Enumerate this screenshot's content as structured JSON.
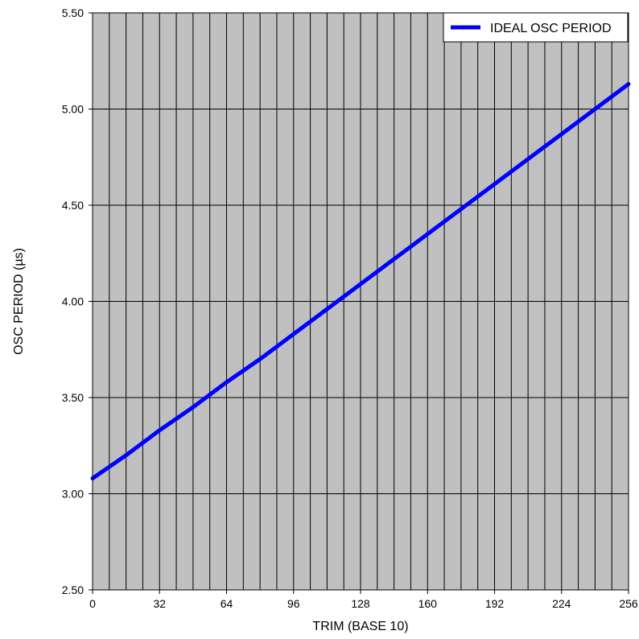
{
  "chart_data": {
    "type": "line",
    "title": "",
    "xlabel": "TRIM (BASE 10)",
    "ylabel": "OSC PERIOD (µs)",
    "xlim": [
      0,
      256
    ],
    "ylim": [
      2.5,
      5.5
    ],
    "x_ticks": [
      0,
      32,
      64,
      96,
      128,
      160,
      192,
      224,
      256
    ],
    "x_tick_labels": [
      "0",
      "32",
      "64",
      "96",
      "128",
      "160",
      "192",
      "224",
      "256"
    ],
    "x_minor_step": 8,
    "y_ticks": [
      2.5,
      3.0,
      3.5,
      4.0,
      4.5,
      5.0,
      5.5
    ],
    "y_tick_labels": [
      "2.50",
      "3.00",
      "3.50",
      "4.00",
      "4.50",
      "5.00",
      "5.50"
    ],
    "grid": true,
    "plot_background": "#c0c0c0",
    "gridline_color": "#000000",
    "legend_position": "top-right",
    "series": [
      {
        "name": "IDEAL OSC PERIOD",
        "color": "#0000ff",
        "x": [
          0,
          16,
          32,
          48,
          64,
          80,
          96,
          112,
          128,
          144,
          160,
          176,
          192,
          208,
          224,
          240,
          256
        ],
        "y": [
          3.08,
          3.2,
          3.33,
          3.45,
          3.58,
          3.7,
          3.83,
          3.96,
          4.09,
          4.22,
          4.35,
          4.48,
          4.61,
          4.74,
          4.87,
          5.0,
          5.13
        ]
      }
    ]
  }
}
